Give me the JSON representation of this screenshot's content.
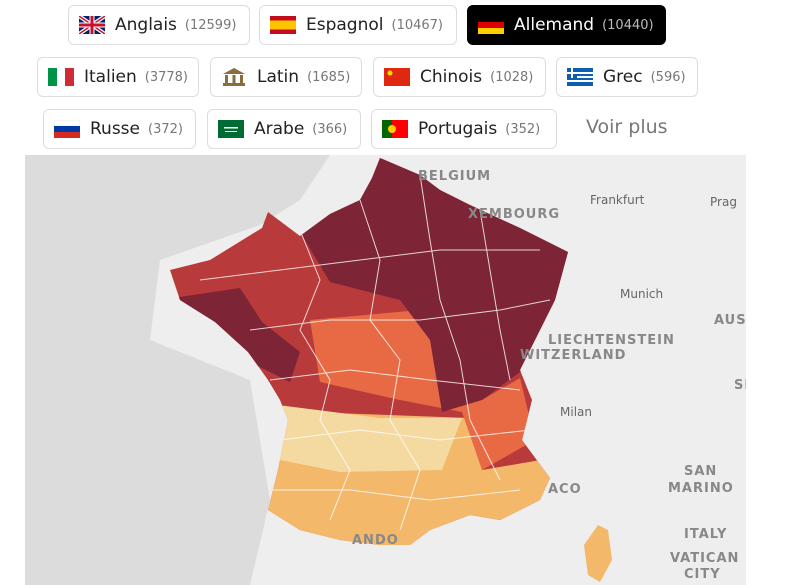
{
  "filters": [
    {
      "label": "Anglais",
      "count": "(12599)"
    },
    {
      "label": "Espagnol",
      "count": "(10467)"
    },
    {
      "label": "Allemand",
      "count": "(10440)",
      "selected": true
    },
    {
      "label": "Italien",
      "count": "(3778)"
    },
    {
      "label": "Latin",
      "count": "(1685)"
    },
    {
      "label": "Chinois",
      "count": "(1028)"
    },
    {
      "label": "Grec",
      "count": "(596)"
    },
    {
      "label": "Russe",
      "count": "(372)"
    },
    {
      "label": "Arabe",
      "count": "(366)"
    },
    {
      "label": "Portugais",
      "count": "(352)"
    }
  ],
  "more": "Voir plus",
  "map_labels": [
    "BELGIUM",
    "XEMBOURG",
    "Frankfurt",
    "Prag",
    "Munich",
    "AUS",
    "LIECHTENSTEIN",
    "WITZERLAND",
    "SI",
    "Milan",
    "SAN",
    "MARINO",
    "ACO",
    "ITALY",
    "VATICAN",
    "CITY",
    "ANDO"
  ]
}
